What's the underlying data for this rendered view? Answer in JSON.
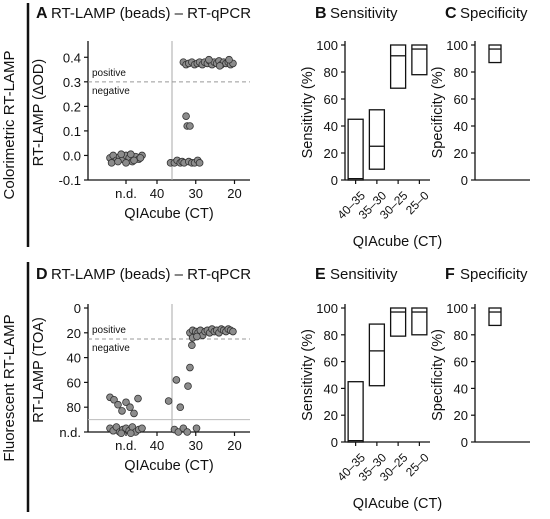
{
  "row_labels": [
    "Colorimetric RT-LAMP",
    "Fluorescent RT-LAMP"
  ],
  "chart_data": [
    {
      "id": "A",
      "type": "scatter",
      "panel_letter": "A",
      "title": "RT-LAMP (beads) – RT-qPCR",
      "xlabel": "QIAcube (CT)",
      "ylabel": "RT-LAMP (ΔOD)",
      "x_ticks": [
        "n.d.",
        "40",
        "30",
        "20"
      ],
      "y_ticks": [
        "-0.1",
        "0.0",
        "0.1",
        "0.2",
        "0.3",
        "0.4"
      ],
      "ylim": [
        -0.1,
        0.45
      ],
      "threshold": 0.3,
      "threshold_style": "dashed",
      "region_labels": {
        "above": "positive",
        "below": "negative"
      },
      "points_nd": [
        [
          -0.02,
          -0.01
        ],
        [
          -0.016,
          0.0
        ],
        [
          -0.012,
          -0.02
        ],
        [
          -0.008,
          -0.005
        ],
        [
          -0.004,
          -0.015
        ],
        [
          0,
          0.0
        ],
        [
          0.004,
          -0.01
        ],
        [
          0.008,
          -0.025
        ],
        [
          0.012,
          -0.005
        ],
        [
          0.016,
          -0.015
        ],
        [
          0.02,
          0.0
        ],
        [
          -0.018,
          -0.03
        ],
        [
          -0.01,
          -0.025
        ],
        [
          0.0,
          -0.03
        ],
        [
          0.01,
          -0.02
        ],
        [
          0.018,
          -0.01
        ],
        [
          -0.006,
          0.005
        ],
        [
          0.006,
          0.005
        ]
      ],
      "points_ct": [
        [
          36.5,
          -0.03
        ],
        [
          35.5,
          -0.03
        ],
        [
          34.8,
          -0.02
        ],
        [
          34,
          -0.03
        ],
        [
          33.5,
          -0.025
        ],
        [
          33,
          -0.03
        ],
        [
          32.5,
          0.16
        ],
        [
          32.2,
          0.12
        ],
        [
          31.5,
          0.12
        ],
        [
          31.8,
          -0.025
        ],
        [
          31,
          -0.03
        ],
        [
          30.3,
          -0.03
        ],
        [
          29.5,
          -0.02
        ],
        [
          29,
          -0.03
        ],
        [
          33.2,
          0.38
        ],
        [
          32.5,
          0.37
        ],
        [
          31.8,
          0.375
        ],
        [
          31,
          0.38
        ],
        [
          30.3,
          0.37
        ],
        [
          29.6,
          0.375
        ],
        [
          29,
          0.38
        ],
        [
          28.3,
          0.37
        ],
        [
          27.7,
          0.38
        ],
        [
          27,
          0.375
        ],
        [
          26.4,
          0.385
        ],
        [
          25.8,
          0.37
        ],
        [
          25.2,
          0.38
        ],
        [
          24.6,
          0.375
        ],
        [
          24,
          0.385
        ],
        [
          23.4,
          0.37
        ],
        [
          22.8,
          0.38
        ],
        [
          22.2,
          0.375
        ],
        [
          21.6,
          0.38
        ],
        [
          21,
          0.37
        ],
        [
          20.4,
          0.375
        ],
        [
          26.6,
          0.39
        ],
        [
          23.8,
          0.365
        ],
        [
          21.4,
          0.39
        ]
      ]
    },
    {
      "id": "B",
      "type": "bar",
      "panel_letter": "B",
      "title": "Sensitivity",
      "xlabel": "QIAcube (CT)",
      "ylabel": "Sensitivity (%)",
      "y_ticks": [
        "0",
        "20",
        "40",
        "60",
        "80",
        "100"
      ],
      "ylim": [
        0,
        100
      ],
      "categories": [
        "40–35",
        "35–30",
        "30–25",
        "25–0"
      ],
      "lower": [
        0,
        8,
        68,
        78
      ],
      "estimate": [
        1,
        25,
        92,
        97
      ],
      "upper": [
        45,
        52,
        100,
        100
      ]
    },
    {
      "id": "C",
      "type": "bar",
      "panel_letter": "C",
      "title": "Specificity",
      "ylabel": "Specificity (%)",
      "y_ticks": [
        "0",
        "20",
        "40",
        "60",
        "80",
        "100"
      ],
      "ylim": [
        0,
        100
      ],
      "categories": [
        ""
      ],
      "lower": [
        87
      ],
      "estimate": [
        97
      ],
      "upper": [
        100
      ]
    },
    {
      "id": "D",
      "type": "scatter",
      "panel_letter": "D",
      "title": "RT-LAMP (beads) – RT-qPCR",
      "xlabel": "QIAcube (CT)",
      "ylabel": "RT-LAMP (TOA)",
      "x_ticks": [
        "n.d.",
        "40",
        "30",
        "20"
      ],
      "y_ticks": [
        "0",
        "20",
        "40",
        "60",
        "80",
        "n.d."
      ],
      "ylim": [
        0,
        100
      ],
      "threshold": 25,
      "threshold_style": "dashed",
      "nd_line": 90,
      "region_labels": {
        "above": "positive",
        "below": "negative"
      },
      "points_nd": [
        [
          -0.02,
          72
        ],
        [
          -0.015,
          74
        ],
        [
          -0.01,
          78
        ],
        [
          -0.005,
          83
        ],
        [
          0,
          76
        ],
        [
          0.005,
          80
        ],
        [
          0.01,
          85
        ],
        [
          0.015,
          73
        ],
        [
          -0.02,
          97
        ],
        [
          -0.016,
          99
        ],
        [
          -0.012,
          96
        ],
        [
          -0.008,
          100
        ],
        [
          -0.004,
          98
        ],
        [
          0,
          97
        ],
        [
          0.004,
          99
        ],
        [
          0.008,
          96
        ],
        [
          0.012,
          100
        ],
        [
          0.016,
          98
        ],
        [
          0.02,
          97
        ],
        [
          -0.006,
          101
        ],
        [
          0.006,
          101
        ]
      ],
      "points_ct": [
        [
          37,
          75
        ],
        [
          35,
          58
        ],
        [
          34,
          80
        ],
        [
          35.5,
          98
        ],
        [
          34.5,
          100
        ],
        [
          33.2,
          97
        ],
        [
          32,
          63
        ],
        [
          31.5,
          48
        ],
        [
          31,
          30
        ],
        [
          32.2,
          100
        ],
        [
          29.8,
          97
        ],
        [
          30.5,
          22
        ],
        [
          31.5,
          20
        ],
        [
          30.8,
          18
        ],
        [
          30,
          19
        ],
        [
          29.4,
          20
        ],
        [
          28.8,
          18
        ],
        [
          28.2,
          22
        ],
        [
          27.6,
          19
        ],
        [
          27,
          18
        ],
        [
          26.4,
          20
        ],
        [
          25.8,
          17
        ],
        [
          25.2,
          19
        ],
        [
          24.6,
          18
        ],
        [
          24,
          20
        ],
        [
          23.4,
          17
        ],
        [
          22.8,
          18
        ],
        [
          22.2,
          19
        ],
        [
          21.6,
          17
        ],
        [
          21,
          18
        ],
        [
          20.4,
          19
        ],
        [
          30.8,
          24
        ],
        [
          29.7,
          23
        ]
      ]
    },
    {
      "id": "E",
      "type": "bar",
      "panel_letter": "E",
      "title": "Sensitivity",
      "xlabel": "QIAcube (CT)",
      "ylabel": "Sensitivity (%)",
      "y_ticks": [
        "0",
        "20",
        "40",
        "60",
        "80",
        "100"
      ],
      "ylim": [
        0,
        100
      ],
      "categories": [
        "40–35",
        "35–30",
        "30–25",
        "25–0"
      ],
      "lower": [
        0,
        42,
        79,
        80
      ],
      "estimate": [
        1,
        68,
        97,
        97
      ],
      "upper": [
        45,
        88,
        100,
        100
      ]
    },
    {
      "id": "F",
      "type": "bar",
      "panel_letter": "F",
      "title": "Specificity",
      "ylabel": "Specificity (%)",
      "y_ticks": [
        "0",
        "20",
        "40",
        "60",
        "80",
        "100"
      ],
      "ylim": [
        0,
        100
      ],
      "categories": [
        ""
      ],
      "lower": [
        87
      ],
      "estimate": [
        97
      ],
      "upper": [
        100
      ]
    }
  ]
}
